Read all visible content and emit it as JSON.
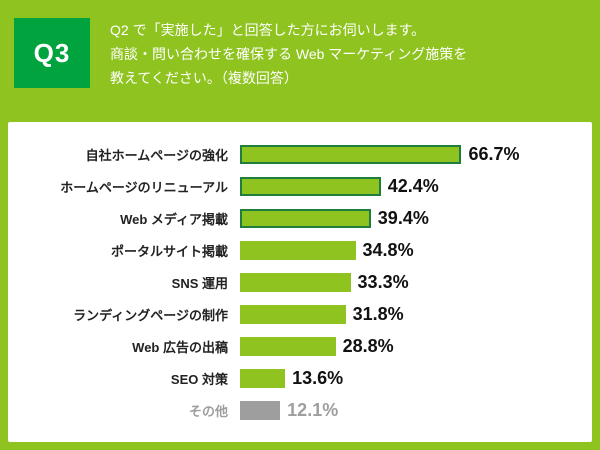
{
  "header": {
    "q_label": "Q3",
    "question_lines": [
      "Q2 で「実施した」と回答した方にお伺いします。",
      "商談・問い合わせを確保する Web マーケティング施策を",
      "教えてください。（複数回答）"
    ]
  },
  "colors": {
    "background": "#8FC31F",
    "q_box": "#00A33E",
    "bar_fill": "#8FC31F",
    "bar_border": "#1E7E3E",
    "other_gray": "#9E9E9E",
    "card": "#FFFFFF",
    "text_dark": "#222222",
    "text_white": "#FFFFFF"
  },
  "chart_data": {
    "type": "bar",
    "orientation": "horizontal",
    "categories": [
      "自社ホームページの強化",
      "ホームページのリニューアル",
      "Web メディア掲載",
      "ポータルサイト掲載",
      "SNS 運用",
      "ランディングページの制作",
      "Web 広告の出稿",
      "SEO 対策",
      "その他"
    ],
    "values": [
      66.7,
      42.4,
      39.4,
      34.8,
      33.3,
      31.8,
      28.8,
      13.6,
      12.1
    ],
    "value_labels": [
      "66.7%",
      "42.4%",
      "39.4%",
      "34.8%",
      "33.3%",
      "31.8%",
      "28.8%",
      "13.6%",
      "12.1%"
    ],
    "xlim": [
      0,
      100
    ],
    "grid": false,
    "legend": false,
    "outlined_count": 3,
    "other_index": 8
  }
}
